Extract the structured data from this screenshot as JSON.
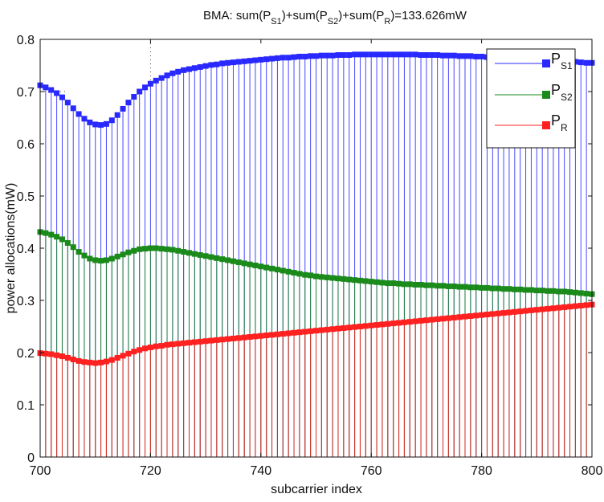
{
  "chart_data": {
    "type": "line",
    "title": {
      "prefix": "BMA: sum(P",
      "s1_sub": "S1",
      "mid1": ")+sum(P",
      "s2_sub": "S2",
      "mid2": ")+sum(P",
      "r_sub": "R",
      "suffix": ")=133.626mW"
    },
    "xlabel": "subcarrier index",
    "ylabel": "power allocations(mW)",
    "xlim": [
      700,
      800
    ],
    "ylim": [
      0,
      0.8
    ],
    "xticks": [
      700,
      720,
      740,
      760,
      780,
      800
    ],
    "yticks": [
      0,
      0.1,
      0.2,
      0.3,
      0.4,
      0.5,
      0.6,
      0.7,
      0.8
    ],
    "grid": "partial-dotted",
    "legend": {
      "position": "top-right",
      "entries": [
        {
          "main": "P",
          "sub": "S1",
          "color": "#2828ff"
        },
        {
          "main": "P",
          "sub": "S2",
          "color": "#1a8a1a"
        },
        {
          "main": "P",
          "sub": "R",
          "color": "#ff2020"
        }
      ]
    },
    "x": [
      700,
      701,
      702,
      703,
      704,
      705,
      706,
      707,
      708,
      709,
      710,
      711,
      712,
      713,
      714,
      715,
      716,
      717,
      718,
      719,
      720,
      721,
      722,
      723,
      724,
      725,
      726,
      727,
      728,
      729,
      730,
      731,
      732,
      733,
      734,
      735,
      736,
      737,
      738,
      739,
      740,
      741,
      742,
      743,
      744,
      745,
      746,
      747,
      748,
      749,
      750,
      751,
      752,
      753,
      754,
      755,
      756,
      757,
      758,
      759,
      760,
      761,
      762,
      763,
      764,
      765,
      766,
      767,
      768,
      769,
      770,
      771,
      772,
      773,
      774,
      775,
      776,
      777,
      778,
      779,
      780,
      781,
      782,
      783,
      784,
      785,
      786,
      787,
      788,
      789,
      790,
      791,
      792,
      793,
      794,
      795,
      796,
      797,
      798,
      799,
      800
    ],
    "series": [
      {
        "name": "PS1",
        "color": "#2828ff",
        "values": [
          0.712,
          0.708,
          0.703,
          0.697,
          0.689,
          0.679,
          0.668,
          0.657,
          0.648,
          0.641,
          0.637,
          0.636,
          0.638,
          0.645,
          0.655,
          0.667,
          0.679,
          0.69,
          0.7,
          0.708,
          0.715,
          0.721,
          0.726,
          0.731,
          0.735,
          0.738,
          0.741,
          0.743,
          0.745,
          0.747,
          0.749,
          0.751,
          0.752,
          0.754,
          0.755,
          0.756,
          0.757,
          0.758,
          0.759,
          0.76,
          0.761,
          0.762,
          0.763,
          0.764,
          0.765,
          0.765,
          0.766,
          0.767,
          0.767,
          0.768,
          0.768,
          0.769,
          0.769,
          0.769,
          0.77,
          0.77,
          0.77,
          0.771,
          0.771,
          0.771,
          0.771,
          0.771,
          0.771,
          0.771,
          0.771,
          0.771,
          0.771,
          0.771,
          0.771,
          0.77,
          0.77,
          0.77,
          0.77,
          0.769,
          0.769,
          0.769,
          0.768,
          0.768,
          0.768,
          0.767,
          0.767,
          0.766,
          0.766,
          0.765,
          0.765,
          0.764,
          0.764,
          0.763,
          0.763,
          0.762,
          0.762,
          0.761,
          0.76,
          0.76,
          0.759,
          0.758,
          0.758,
          0.757,
          0.756,
          0.755,
          0.755
        ]
      },
      {
        "name": "PS2",
        "color": "#1a8a1a",
        "values": [
          0.431,
          0.429,
          0.426,
          0.422,
          0.417,
          0.41,
          0.402,
          0.393,
          0.386,
          0.38,
          0.377,
          0.376,
          0.377,
          0.38,
          0.384,
          0.388,
          0.392,
          0.395,
          0.398,
          0.399,
          0.4,
          0.4,
          0.399,
          0.398,
          0.397,
          0.395,
          0.393,
          0.391,
          0.389,
          0.387,
          0.385,
          0.383,
          0.381,
          0.379,
          0.377,
          0.375,
          0.373,
          0.371,
          0.369,
          0.367,
          0.365,
          0.363,
          0.361,
          0.359,
          0.357,
          0.355,
          0.353,
          0.351,
          0.349,
          0.348,
          0.346,
          0.345,
          0.344,
          0.343,
          0.342,
          0.341,
          0.34,
          0.339,
          0.338,
          0.337,
          0.336,
          0.335,
          0.334,
          0.333,
          0.333,
          0.332,
          0.331,
          0.331,
          0.33,
          0.33,
          0.329,
          0.329,
          0.328,
          0.328,
          0.327,
          0.327,
          0.326,
          0.326,
          0.325,
          0.325,
          0.324,
          0.324,
          0.323,
          0.323,
          0.322,
          0.322,
          0.321,
          0.321,
          0.32,
          0.32,
          0.319,
          0.319,
          0.318,
          0.318,
          0.317,
          0.317,
          0.316,
          0.315,
          0.314,
          0.313,
          0.312
        ]
      },
      {
        "name": "PR",
        "color": "#ff2020",
        "values": [
          0.199,
          0.198,
          0.197,
          0.195,
          0.193,
          0.19,
          0.187,
          0.184,
          0.182,
          0.181,
          0.18,
          0.181,
          0.183,
          0.186,
          0.19,
          0.194,
          0.198,
          0.202,
          0.205,
          0.208,
          0.21,
          0.212,
          0.213,
          0.215,
          0.216,
          0.217,
          0.218,
          0.219,
          0.22,
          0.221,
          0.222,
          0.223,
          0.224,
          0.225,
          0.226,
          0.227,
          0.228,
          0.229,
          0.23,
          0.231,
          0.232,
          0.233,
          0.234,
          0.235,
          0.236,
          0.237,
          0.238,
          0.239,
          0.24,
          0.241,
          0.242,
          0.243,
          0.244,
          0.245,
          0.246,
          0.247,
          0.248,
          0.249,
          0.25,
          0.251,
          0.252,
          0.253,
          0.254,
          0.255,
          0.256,
          0.257,
          0.258,
          0.259,
          0.26,
          0.261,
          0.262,
          0.263,
          0.264,
          0.265,
          0.266,
          0.267,
          0.268,
          0.269,
          0.27,
          0.271,
          0.272,
          0.273,
          0.274,
          0.275,
          0.276,
          0.277,
          0.278,
          0.279,
          0.28,
          0.281,
          0.282,
          0.283,
          0.284,
          0.285,
          0.286,
          0.287,
          0.288,
          0.289,
          0.29,
          0.291,
          0.292
        ]
      }
    ]
  }
}
